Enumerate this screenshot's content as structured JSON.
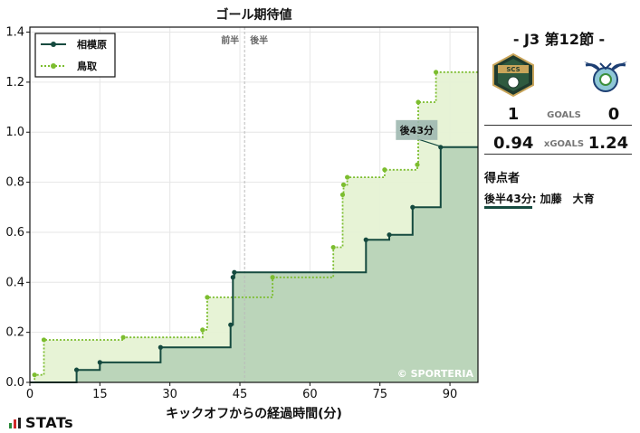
{
  "chart_data": {
    "type": "line",
    "title": "ゴール期待値",
    "xlabel": "キックオフからの経過時間(分)",
    "ylabel": "",
    "xlim": [
      0,
      96
    ],
    "ylim": [
      0,
      1.42
    ],
    "xticks": [
      0,
      15,
      30,
      45,
      60,
      75,
      90
    ],
    "yticks": [
      0.0,
      0.2,
      0.4,
      0.6,
      0.8,
      1.0,
      1.2,
      1.4
    ],
    "ytick_labels": [
      "0.0",
      "0.2",
      "0.4",
      "0.6",
      "0.8",
      "1.0",
      "1.2",
      "1.4"
    ],
    "grid": true,
    "legend_position": "top-left",
    "halftime_minute": 46,
    "halftime_labels": [
      "前半",
      "後半"
    ],
    "watermark": "© SPORTERIA",
    "annotation": {
      "text": "後43分",
      "x": 88.5,
      "y": 0.94
    },
    "series": [
      {
        "name": "相模原",
        "color": "#154a3f",
        "fill": "#b8d3b8",
        "style": "solid",
        "x": [
          0,
          10,
          15,
          28,
          43,
          43.5,
          43.8,
          72,
          77,
          82,
          88,
          96
        ],
        "y": [
          0,
          0.05,
          0.08,
          0.14,
          0.23,
          0.42,
          0.44,
          0.57,
          0.59,
          0.7,
          0.94,
          0.94
        ]
      },
      {
        "name": "鳥取",
        "color": "#7cbd2f",
        "fill": "#e6f2d4",
        "style": "dotted",
        "x": [
          0,
          1,
          3,
          20,
          37,
          38,
          52,
          65,
          67,
          67.2,
          68,
          76,
          83,
          83.2,
          87,
          96
        ],
        "y": [
          0,
          0.03,
          0.17,
          0.18,
          0.21,
          0.34,
          0.42,
          0.54,
          0.75,
          0.79,
          0.82,
          0.85,
          0.87,
          1.12,
          1.24,
          1.24
        ]
      }
    ]
  },
  "match": {
    "title": "- J3 第12節 -",
    "home_crest_text": "SCS",
    "home_goals": "1",
    "away_goals": "0",
    "goals_label": "GOALS",
    "home_xg": "0.94",
    "away_xg": "1.24",
    "xg_label": "xGOALS"
  },
  "scorers": {
    "heading": "得点者",
    "entries": [
      {
        "time": "後半43分",
        "name": ": 加藤　大育"
      }
    ]
  },
  "brand": {
    "text": "STATs"
  }
}
